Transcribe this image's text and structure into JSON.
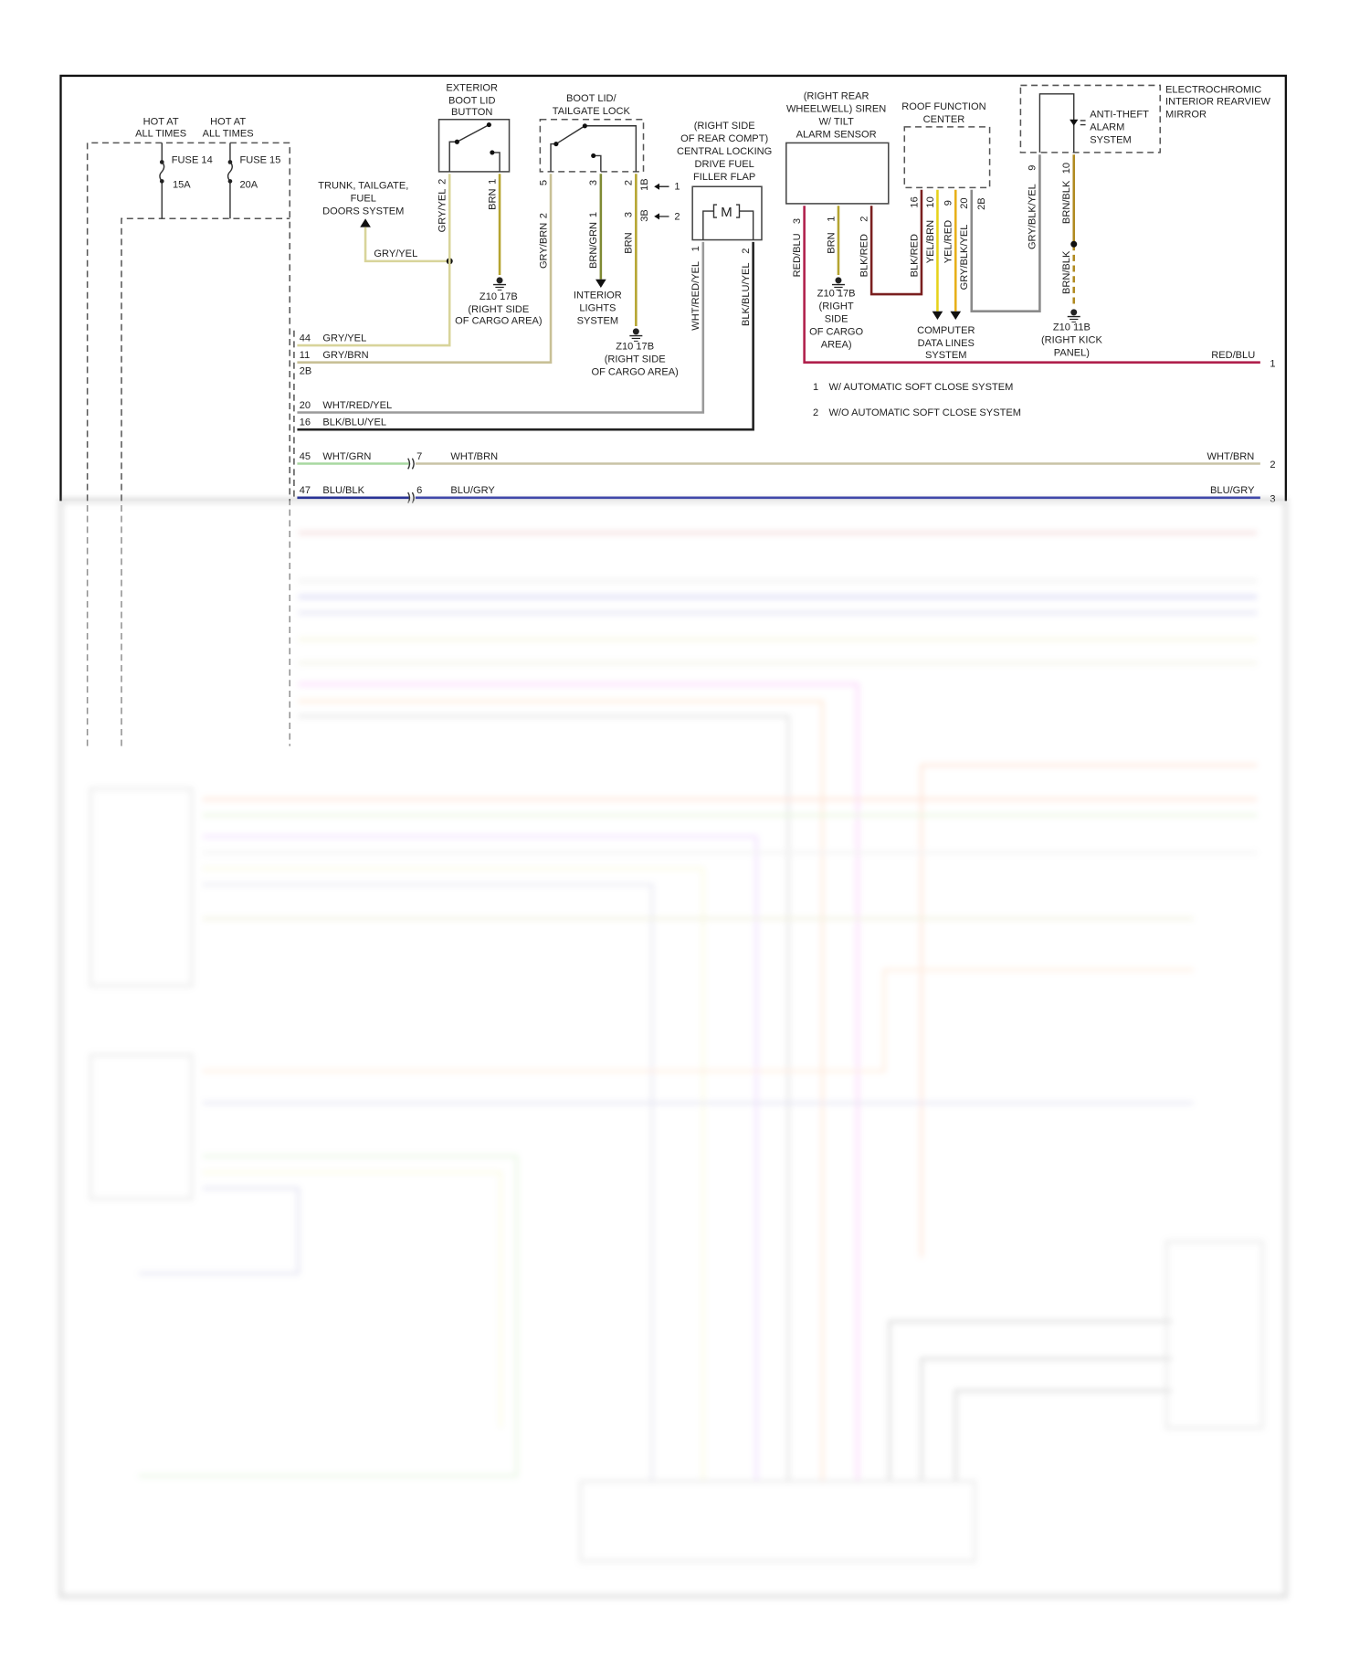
{
  "colors": {
    "gry_yel": "#d8d49a",
    "gry_brn": "#c8c096",
    "brn": "#b5a430",
    "brn_grn": "#7f8a34",
    "wht_red_yel": "#9a9a9a",
    "blk_blu_yel": "#222222",
    "red_blu": "#b0204c",
    "blk_red": "#7a1f1f",
    "yel_brn": "#e6d21a",
    "yel_red": "#e8b01a",
    "gry_blk_yel": "#8a8a8a",
    "brn_blk": "#b08a20",
    "wht_grn": "#a8d8a0",
    "wht_brn": "#c9c3a6",
    "blu_blk": "#1f2a9a",
    "blu_gry": "#3a44b0"
  },
  "fuse_block": {
    "hot1": [
      "HOT AT",
      "ALL TIMES"
    ],
    "hot2": [
      "HOT AT",
      "ALL TIMES"
    ],
    "fuse14": "FUSE 14",
    "fuse14_amp": "15A",
    "fuse15": "FUSE 15",
    "fuse15_amp": "20A"
  },
  "trunk_system": [
    "TRUNK, TAILGATE,",
    "FUEL",
    "DOORS SYSTEM"
  ],
  "trunk_wire": "GRY/YEL",
  "boot_button": {
    "title": [
      "EXTERIOR",
      "BOOT LID",
      "BUTTON"
    ],
    "pin2": "2",
    "wire2": "GRY/YEL",
    "pin1": "1",
    "wire1": "BRN"
  },
  "ground_cargo_1": [
    "Z10 17B",
    "(RIGHT SIDE",
    "OF CARGO AREA)"
  ],
  "boot_lock": {
    "title": [
      "BOOT LID/",
      "TAILGATE LOCK"
    ],
    "pin5": "5",
    "pin3": "3",
    "pin2": "2",
    "pin1b": "1B",
    "pin3b": "3B",
    "note1": "1",
    "note2": "2",
    "wire_a": "GRY/BRN",
    "wire_a_pin": "2",
    "wire_b": "BRN/GRN",
    "wire_b_pin": "1",
    "wire_c": "BRN",
    "wire_c_pin": "3"
  },
  "interior_lights": [
    "INTERIOR",
    "LIGHTS",
    "SYSTEM"
  ],
  "ground_cargo_2": [
    "Z10 17B",
    "(RIGHT SIDE",
    "OF CARGO AREA)"
  ],
  "fuel_flap": {
    "title": [
      "(RIGHT SIDE",
      "OF REAR COMPT)",
      "CENTRAL LOCKING",
      "DRIVE FUEL",
      "FILLER FLAP"
    ],
    "motor": "M",
    "pin1": "1",
    "pin2": "2",
    "wire1": "WHT/RED/YEL",
    "wire2": "BLK/BLU/YEL"
  },
  "siren": {
    "title": [
      "(RIGHT REAR",
      "WHEELWELL) SIREN",
      "W/ TILT",
      "ALARM SENSOR"
    ],
    "pin3": "3",
    "pin1": "1",
    "pin2": "2",
    "wire3": "RED/BLU",
    "wire1": "BRN",
    "wire2": "BLK/RED"
  },
  "ground_cargo_3": [
    "Z10 17B",
    "(RIGHT",
    "SIDE",
    "OF CARGO",
    "AREA)"
  ],
  "roof": {
    "title": [
      "ROOF FUNCTION",
      "CENTER"
    ],
    "pins": [
      "16",
      "10",
      "9",
      "20",
      "2B"
    ],
    "wires": [
      "BLK/RED",
      "YEL/BRN",
      "YEL/RED",
      "GRY/BLK/YEL"
    ]
  },
  "computer_data": [
    "COMPUTER",
    "DATA LINES",
    "SYSTEM"
  ],
  "mirror": {
    "title": [
      "ELECTROCHROMIC",
      "INTERIOR REARVIEW",
      "MIRROR"
    ],
    "antitheft": [
      "ANTI-THEFT",
      "ALARM",
      "SYSTEM"
    ],
    "pin9": "9",
    "pin10": "10",
    "wire9": "GRY/BLK/YEL",
    "wire10": "BRN/BLK",
    "wire10b": "BRN/BLK"
  },
  "ground_kick": [
    "Z10 11B",
    "(RIGHT KICK",
    "PANEL)"
  ],
  "notes": {
    "n1_num": "1",
    "n1": "W/ AUTOMATIC SOFT CLOSE SYSTEM",
    "n2_num": "2",
    "n2": "W/O AUTOMATIC SOFT CLOSE SYSTEM"
  },
  "connector_left": [
    {
      "pin": "44",
      "wire": "GRY/YEL"
    },
    {
      "pin": "11",
      "wire": "GRY/BRN"
    },
    {
      "pin": "2B"
    },
    {
      "pin": "20",
      "wire": "WHT/RED/YEL"
    },
    {
      "pin": "16",
      "wire": "BLK/BLU/YEL"
    },
    {
      "pin": "45",
      "wire": "WHT/GRN",
      "pin2": "7",
      "wire2": "WHT/BRN"
    },
    {
      "pin": "47",
      "wire": "BLU/BLK",
      "pin2": "6",
      "wire2": "BLU/GRY"
    }
  ],
  "right_edge": [
    {
      "wire": "RED/BLU",
      "ref": "1"
    },
    {
      "wire": "WHT/BRN",
      "ref": "2"
    },
    {
      "wire": "BLU/GRY",
      "ref": "3"
    }
  ]
}
